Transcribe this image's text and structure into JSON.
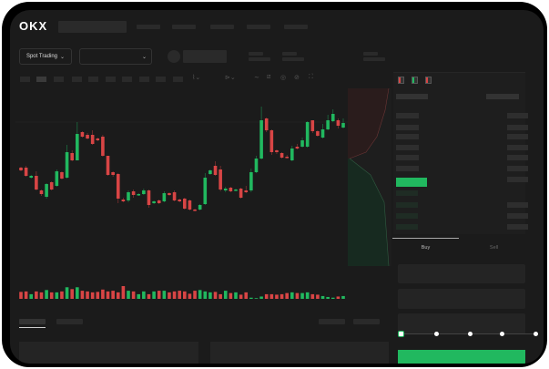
{
  "header": {
    "logo": "OKX"
  },
  "toolbar": {
    "market_selector": "Spot Trading"
  },
  "trade": {
    "tabs": [
      {
        "label": "Buy",
        "active": true
      },
      {
        "label": "Sell",
        "active": false
      }
    ],
    "slider_level": 0
  },
  "colors": {
    "up": "#21b85f",
    "down": "#d84545",
    "bg": "#1b1b1b",
    "accent": "#21b85f"
  },
  "icons": [
    "chevron-down-icon",
    "indicator-icon",
    "draw-line-icon",
    "ruler-icon",
    "camera-icon",
    "settings-icon",
    "fullscreen-icon",
    "orderbook-both-icon",
    "orderbook-buy-icon",
    "orderbook-sell-icon"
  ],
  "chart_data": {
    "type": "candlestick",
    "ohlc": [
      [
        68,
        69,
        64,
        65
      ],
      [
        68,
        70,
        58,
        59
      ],
      [
        57,
        60,
        56,
        59
      ],
      [
        59,
        64,
        43,
        44
      ],
      [
        43,
        44,
        37,
        39
      ],
      [
        36,
        51,
        34,
        50
      ],
      [
        52,
        53,
        43,
        44
      ],
      [
        48,
        66,
        47,
        64
      ],
      [
        63,
        64,
        55,
        56
      ],
      [
        57,
        93,
        56,
        85
      ],
      [
        84,
        87,
        75,
        76
      ],
      [
        76,
        118,
        76,
        105
      ],
      [
        107,
        108,
        101,
        102
      ],
      [
        104,
        106,
        99,
        100
      ],
      [
        104,
        109,
        93,
        94
      ],
      [
        100,
        101,
        97,
        98
      ],
      [
        102,
        104,
        80,
        81
      ],
      [
        81,
        81,
        59,
        60
      ],
      [
        63,
        64,
        58,
        60
      ],
      [
        61,
        62,
        29,
        34
      ],
      [
        33,
        35,
        30,
        31
      ],
      [
        32,
        43,
        30,
        41
      ],
      [
        42,
        44,
        35,
        38
      ],
      [
        38,
        40,
        37,
        39
      ],
      [
        39,
        45,
        38,
        43
      ],
      [
        43,
        44,
        24,
        27
      ],
      [
        29,
        32,
        28,
        31
      ],
      [
        32,
        33,
        28,
        29
      ],
      [
        31,
        42,
        30,
        40
      ],
      [
        40,
        41,
        37,
        38
      ],
      [
        41,
        43,
        31,
        32
      ],
      [
        33,
        34,
        30,
        31
      ],
      [
        34,
        35,
        22,
        23
      ],
      [
        32,
        33,
        21,
        22
      ],
      [
        22,
        23,
        20,
        21
      ],
      [
        22,
        28,
        21,
        27
      ],
      [
        28,
        62,
        27,
        57
      ],
      [
        61,
        66,
        60,
        65
      ],
      [
        70,
        75,
        59,
        60
      ],
      [
        66,
        70,
        42,
        44
      ],
      [
        43,
        47,
        41,
        45
      ],
      [
        46,
        47,
        41,
        42
      ],
      [
        43,
        45,
        42,
        44
      ],
      [
        45,
        46,
        34,
        35
      ],
      [
        43,
        48,
        40,
        41
      ],
      [
        43,
        67,
        41,
        63
      ],
      [
        63,
        81,
        62,
        78
      ],
      [
        78,
        135,
        77,
        120
      ],
      [
        122,
        123,
        107,
        109
      ],
      [
        109,
        110,
        82,
        85
      ],
      [
        87,
        88,
        83,
        85
      ],
      [
        84,
        85,
        78,
        79
      ],
      [
        80,
        82,
        78,
        79
      ],
      [
        76,
        92,
        75,
        89
      ],
      [
        91,
        94,
        88,
        89
      ],
      [
        91,
        101,
        90,
        98
      ],
      [
        91,
        119,
        90,
        118
      ],
      [
        120,
        120,
        106,
        108
      ],
      [
        108,
        109,
        102,
        103
      ],
      [
        101,
        116,
        100,
        110
      ],
      [
        110,
        126,
        109,
        120
      ],
      [
        119,
        132,
        118,
        127
      ],
      [
        120,
        122,
        111,
        114
      ],
      [
        112,
        122,
        111,
        117
      ]
    ],
    "volume": [
      30,
      32,
      20,
      32,
      28,
      38,
      28,
      28,
      32,
      50,
      42,
      50,
      35,
      32,
      28,
      30,
      40,
      32,
      35,
      28,
      55,
      35,
      32,
      20,
      32,
      20,
      32,
      35,
      35,
      28,
      32,
      35,
      32,
      22,
      35,
      38,
      32,
      28,
      30,
      20,
      35,
      25,
      28,
      18,
      28,
      5,
      3,
      10,
      20,
      20,
      18,
      20,
      25,
      28,
      25,
      25,
      28,
      20,
      18,
      12,
      8,
      5,
      10,
      12
    ],
    "ylim": [
      15,
      140
    ]
  }
}
